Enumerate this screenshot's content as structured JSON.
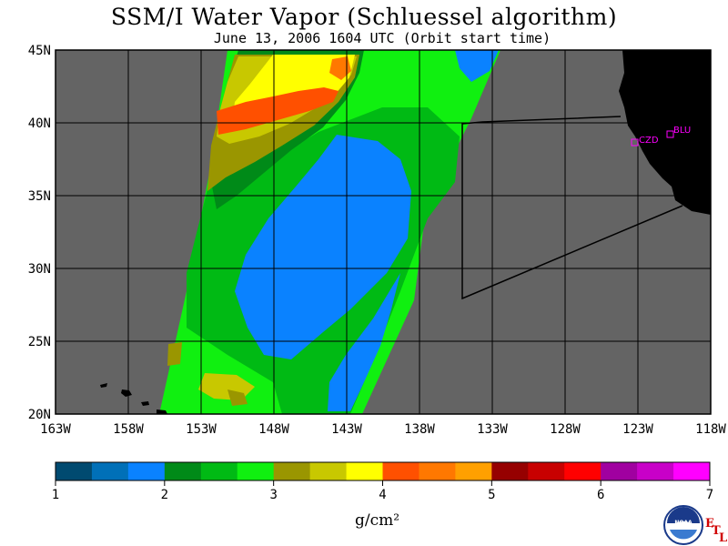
{
  "title": "SSM/I Water Vapor (Schluessel algorithm)",
  "subtitle": "June 13, 2006  1604 UTC  (Orbit start time)",
  "lat_labels": [
    "45N",
    "40N",
    "35N",
    "30N",
    "25N",
    "20N"
  ],
  "lon_labels": [
    "163W",
    "158W",
    "153W",
    "148W",
    "143W",
    "138W",
    "133W",
    "128W",
    "123W",
    "118W"
  ],
  "stations": [
    {
      "code": "CZD"
    },
    {
      "code": "BLU"
    }
  ],
  "colorbar": {
    "ticks": [
      "1",
      "2",
      "3",
      "4",
      "5",
      "6",
      "7"
    ],
    "units": "g/cm²",
    "colors": [
      "#004a70",
      "#0070b8",
      "#0a82ff",
      "#008a18",
      "#00ba14",
      "#10f010",
      "#9a9600",
      "#c8c800",
      "#ffff00",
      "#ff5000",
      "#ff7800",
      "#ffa000",
      "#960000",
      "#c80000",
      "#ff0000",
      "#a000a0",
      "#c800c8",
      "#ff00ff"
    ]
  },
  "logo": {
    "text": "NOAA",
    "etl": [
      "E",
      "T",
      "L"
    ]
  },
  "colors": {
    "land": "#000000",
    "no_data": "#646464",
    "grid": "#000000",
    "station": "#ff00ff"
  }
}
